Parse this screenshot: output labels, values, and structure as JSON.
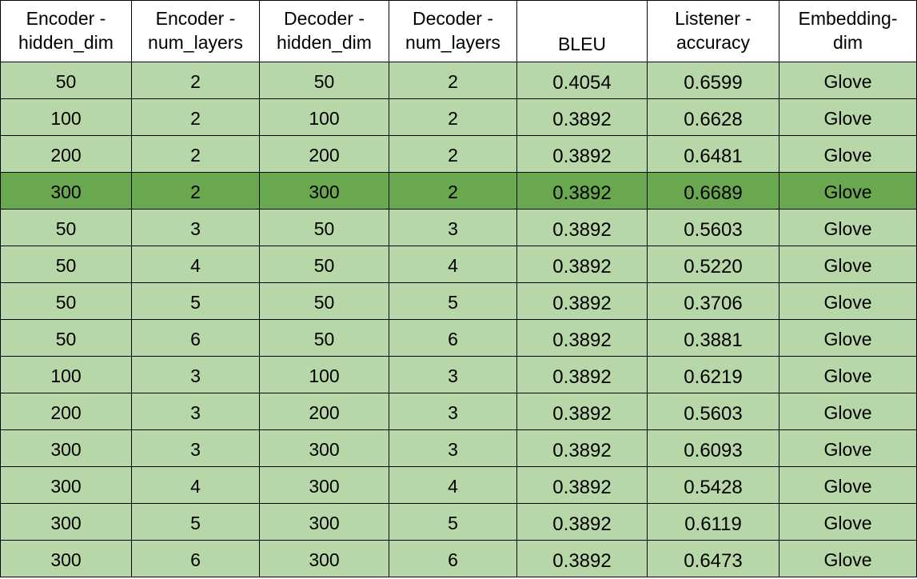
{
  "table": {
    "headers": [
      [
        "Encoder -",
        "hidden_dim"
      ],
      [
        "Encoder -",
        "num_layers"
      ],
      [
        "Decoder -",
        "hidden_dim"
      ],
      [
        "Decoder -",
        "num_layers"
      ],
      [
        "BLEU"
      ],
      [
        "Listener -",
        "accuracy"
      ],
      [
        "Embedding-",
        "dim"
      ]
    ],
    "highlighted_row": 3,
    "colors": {
      "row_fill": "#b7d7a8",
      "highlight_fill": "#6aa84f",
      "border": "#000000"
    },
    "rows": [
      [
        "50",
        "2",
        "50",
        "2",
        "0.4054",
        "0.6599",
        "Glove"
      ],
      [
        "100",
        "2",
        "100",
        "2",
        "0.3892",
        "0.6628",
        "Glove"
      ],
      [
        "200",
        "2",
        "200",
        "2",
        "0.3892",
        "0.6481",
        "Glove"
      ],
      [
        "300",
        "2",
        "300",
        "2",
        "0.3892",
        "0.6689",
        "Glove"
      ],
      [
        "50",
        "3",
        "50",
        "3",
        "0.3892",
        "0.5603",
        "Glove"
      ],
      [
        "50",
        "4",
        "50",
        "4",
        "0.3892",
        "0.5220",
        "Glove"
      ],
      [
        "50",
        "5",
        "50",
        "5",
        "0.3892",
        "0.3706",
        "Glove"
      ],
      [
        "50",
        "6",
        "50",
        "6",
        "0.3892",
        "0.3881",
        "Glove"
      ],
      [
        "100",
        "3",
        "100",
        "3",
        "0.3892",
        "0.6219",
        "Glove"
      ],
      [
        "200",
        "3",
        "200",
        "3",
        "0.3892",
        "0.5603",
        "Glove"
      ],
      [
        "300",
        "3",
        "300",
        "3",
        "0.3892",
        "0.6093",
        "Glove"
      ],
      [
        "300",
        "4",
        "300",
        "4",
        "0.3892",
        "0.5428",
        "Glove"
      ],
      [
        "300",
        "5",
        "300",
        "5",
        "0.3892",
        "0.6119",
        "Glove"
      ],
      [
        "300",
        "6",
        "300",
        "6",
        "0.3892",
        "0.6473",
        "Glove"
      ]
    ]
  }
}
